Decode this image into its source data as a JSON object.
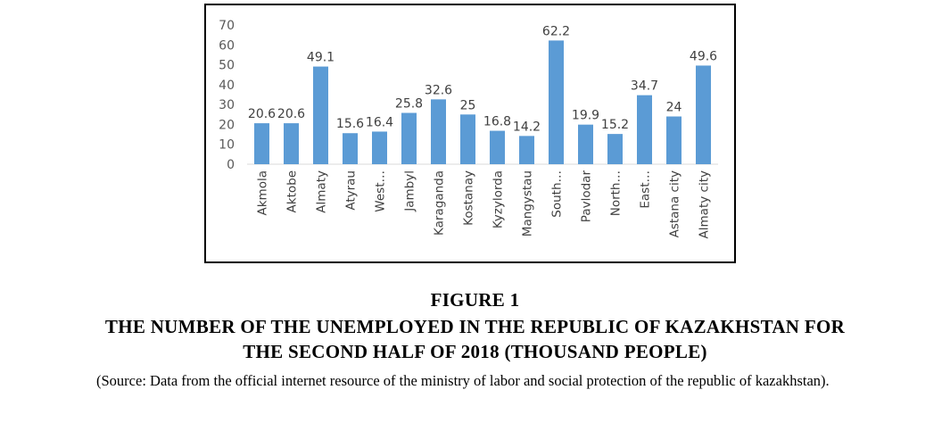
{
  "chart_data": {
    "type": "bar",
    "categories": [
      "Akmola",
      "Aktobe",
      "Almaty",
      "Atyrau",
      "West…",
      "Jambyl",
      "Karaganda",
      "Kostanay",
      "Kyzylorda",
      "Mangystau",
      "South…",
      "Pavlodar",
      "North…",
      "East…",
      "Astana city",
      "Almaty city"
    ],
    "values": [
      20.6,
      20.6,
      49.1,
      15.6,
      16.4,
      25.8,
      32.6,
      25,
      16.8,
      14.2,
      62.2,
      19.9,
      15.2,
      34.7,
      24,
      49.6
    ],
    "data_labels": [
      "20.6",
      "20.6",
      "49.1",
      "15.6",
      "16.4",
      "25.8",
      "32.6",
      "25",
      "16.8",
      "14.2",
      "62.2",
      "19.9",
      "15.2",
      "34.7",
      "24",
      "49.6"
    ],
    "yticks": [
      0,
      10,
      20,
      30,
      40,
      50,
      60,
      70
    ],
    "ylim": [
      0,
      70
    ],
    "grid": false,
    "legend": "none",
    "bar_color": "#5b9bd5",
    "title": "",
    "xlabel": "",
    "ylabel": ""
  },
  "caption": {
    "figure_label": "FIGURE 1",
    "title_line1": "THE NUMBER OF THE UNEMPLOYED IN THE REPUBLIC OF KAZAKHSTAN FOR",
    "title_line2": "THE SECOND HALF OF 2018 (THOUSAND PEOPLE)",
    "source": "(Source: Data from the official internet resource of the ministry of labor and social protection of the republic of kazakhstan)."
  }
}
